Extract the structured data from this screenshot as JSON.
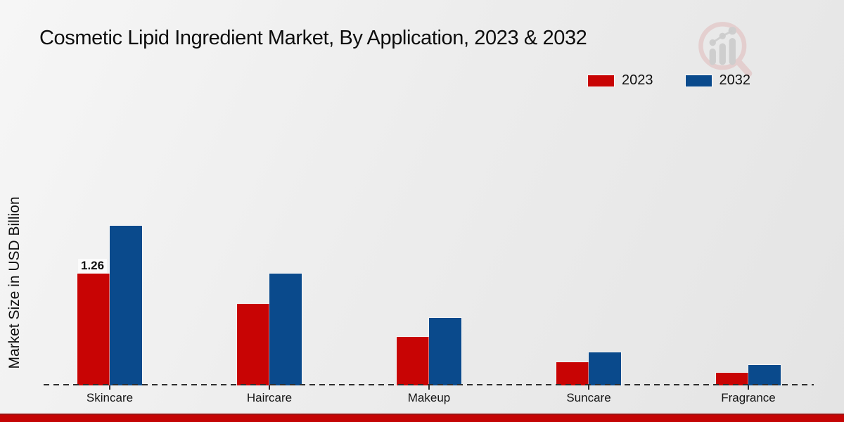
{
  "header": {
    "title": "Cosmetic Lipid Ingredient Market, By Application, 2023 & 2032"
  },
  "axes": {
    "y_label": "Market Size in USD Billion"
  },
  "legend": {
    "items": [
      {
        "label": "2023",
        "color": "#c80404"
      },
      {
        "label": "2032",
        "color": "#0a4a8c"
      }
    ]
  },
  "annotations": {
    "skincare_2023_value": "1.26"
  },
  "icons": {
    "logo": "magnifier-bar-chart-logo"
  },
  "colors": {
    "series_2023": "#c80404",
    "series_2032": "#0a4a8c",
    "footer_accent": "#c40404",
    "baseline": "#2e2e2e"
  },
  "chart_data": {
    "type": "bar",
    "title": "Cosmetic Lipid Ingredient Market, By Application, 2023 & 2032",
    "xlabel": "",
    "ylabel": "Market Size in USD Billion",
    "categories": [
      "Skincare",
      "Haircare",
      "Makeup",
      "Suncare",
      "Fragrance"
    ],
    "series": [
      {
        "name": "2023",
        "color": "#c80404",
        "values": [
          1.26,
          0.92,
          0.55,
          0.26,
          0.14
        ],
        "data_labels": [
          "1.26",
          "",
          "",
          "",
          ""
        ]
      },
      {
        "name": "2032",
        "color": "#0a4a8c",
        "values": [
          1.8,
          1.26,
          0.76,
          0.37,
          0.23
        ],
        "data_labels": [
          "",
          "",
          "",
          "",
          ""
        ]
      }
    ],
    "ylim": [
      0,
      2.0
    ],
    "grid": false,
    "y_axis_tick_labels_visible": false,
    "legend_position": "top-right",
    "baseline_style": "dashed"
  }
}
